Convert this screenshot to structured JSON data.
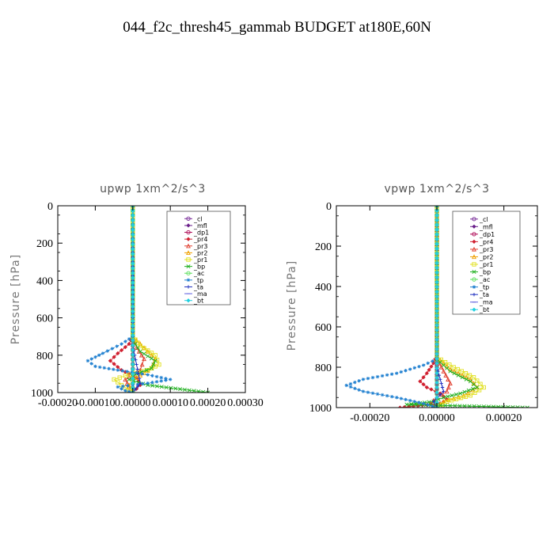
{
  "figure": {
    "title": "044_f2c_thresh45_gammab  BUDGET at180E,60N"
  },
  "legend_labels": [
    "_cl",
    "_mfl",
    "_dp1",
    "_pr4",
    "_pr3",
    "_pr2",
    "_pr1",
    "_bp",
    "_ac",
    "_tp",
    "_ta",
    "_ma",
    "_bt"
  ],
  "series_colors": [
    "#7a2f9a",
    "#6a1f8a",
    "#b0105a",
    "#d02030",
    "#e04030",
    "#f0a000",
    "#e0e020",
    "#20b020",
    "#60e060",
    "#2080d0",
    "#2030c0",
    "#6060e0",
    "#20d0e0"
  ],
  "chart_data": [
    {
      "type": "line",
      "title": "upwp   1xm^2/s^3",
      "ylabel": "Pressure [hPa]",
      "xlim": [
        -0.0002,
        0.0003
      ],
      "ylim": [
        1000,
        0
      ],
      "xticks": [
        -0.0002,
        -0.0001,
        0.0,
        0.0001,
        0.0002,
        0.0003
      ],
      "xtick_labels": [
        "-0.00020",
        "-0.00010",
        "0.00000",
        "0.00010",
        "0.00020",
        "0.00030"
      ],
      "yticks": [
        0,
        200,
        400,
        600,
        800,
        1000
      ],
      "ytick_labels": [
        "0",
        "200",
        "400",
        "600",
        "800",
        "1000"
      ],
      "legend_position": "top-right",
      "series": [
        {
          "name": "_cl",
          "x": [
            0,
            0
          ],
          "y": [
            0,
            1000
          ]
        },
        {
          "name": "_mfl",
          "x": [
            0,
            0
          ],
          "y": [
            0,
            1000
          ]
        },
        {
          "name": "_dp1",
          "x": [
            0,
            0,
            0,
            0,
            0,
            0,
            0
          ],
          "y": [
            0,
            200,
            400,
            600,
            800,
            950,
            1000
          ]
        },
        {
          "name": "_pr4",
          "x": [
            0,
            0,
            -1e-05,
            -4e-05,
            -6e-05,
            -3e-05,
            1e-05,
            2e-05,
            0.0
          ],
          "y": [
            0,
            700,
            740,
            790,
            830,
            880,
            920,
            960,
            1000
          ]
        },
        {
          "name": "_pr3",
          "x": [
            0,
            0,
            1e-05,
            3e-05,
            2e-05,
            -2e-05,
            -1e-05,
            0.0
          ],
          "y": [
            0,
            700,
            760,
            820,
            880,
            930,
            970,
            1000
          ]
        },
        {
          "name": "_pr2",
          "x": [
            0,
            0,
            3e-05,
            6e-05,
            5e-05,
            1e-05,
            -1e-05,
            0.0
          ],
          "y": [
            0,
            700,
            760,
            820,
            870,
            920,
            960,
            1000
          ]
        },
        {
          "name": "_pr1",
          "x": [
            0,
            0,
            2e-05,
            6e-05,
            7e-05,
            4e-05,
            -2e-05,
            -5e-05,
            -3e-05,
            0.0
          ],
          "y": [
            0,
            700,
            750,
            800,
            850,
            880,
            910,
            930,
            960,
            1000
          ]
        },
        {
          "name": "_bp",
          "x": [
            0,
            0,
            2e-05,
            6e-05,
            5e-05,
            1e-05,
            -1e-05,
            4e-05,
            0.0002
          ],
          "y": [
            0,
            720,
            780,
            830,
            870,
            900,
            930,
            960,
            1000
          ]
        },
        {
          "name": "_ac",
          "x": [
            0,
            0,
            0
          ],
          "y": [
            0,
            800,
            1000
          ]
        },
        {
          "name": "_tp",
          "x": [
            0,
            0,
            -3e-05,
            -8e-05,
            -0.00012,
            -0.0001,
            -4e-05,
            1e-05,
            4e-05,
            0.0001,
            4e-05,
            -4e-05,
            -2e-05,
            0.0
          ],
          "y": [
            0,
            700,
            740,
            790,
            830,
            860,
            880,
            895,
            905,
            930,
            950,
            970,
            990,
            1000
          ]
        },
        {
          "name": "_ta",
          "x": [
            0,
            0,
            1e-05,
            2e-05,
            0.0
          ],
          "y": [
            0,
            750,
            850,
            950,
            1000
          ]
        },
        {
          "name": "_ma",
          "x": [
            0,
            0,
            0
          ],
          "y": [
            0,
            900,
            1000
          ]
        },
        {
          "name": "_bt",
          "x": [
            0,
            0,
            0
          ],
          "y": [
            0,
            900,
            1000
          ]
        }
      ]
    },
    {
      "type": "line",
      "title": "vpwp   1xm^2/s^3",
      "ylabel": "Pressure [hPa]",
      "xlim": [
        -0.0003,
        0.0003
      ],
      "ylim": [
        1000,
        0
      ],
      "xticks": [
        -0.0002,
        0.0,
        0.0002
      ],
      "xtick_labels": [
        "-0.00020",
        "0.00000",
        "0.00020"
      ],
      "yticks": [
        0,
        200,
        400,
        600,
        800,
        1000
      ],
      "ytick_labels": [
        "0",
        "200",
        "400",
        "600",
        "800",
        "1000"
      ],
      "legend_position": "top-right",
      "series": [
        {
          "name": "_cl",
          "x": [
            0,
            0
          ],
          "y": [
            0,
            1000
          ]
        },
        {
          "name": "_mfl",
          "x": [
            0,
            0
          ],
          "y": [
            0,
            1000
          ]
        },
        {
          "name": "_dp1",
          "x": [
            0,
            0,
            0,
            0,
            0,
            0
          ],
          "y": [
            0,
            200,
            400,
            600,
            800,
            1000
          ]
        },
        {
          "name": "_pr4",
          "x": [
            0,
            0,
            -1e-05,
            -3e-05,
            -5e-05,
            -3e-05,
            1e-05,
            3e-05,
            1e-05,
            -0.00011
          ],
          "y": [
            0,
            740,
            780,
            830,
            870,
            900,
            930,
            960,
            980,
            1000
          ]
        },
        {
          "name": "_pr3",
          "x": [
            0,
            0,
            2e-05,
            4e-05,
            3e-05,
            0.0,
            -2e-05,
            0.0
          ],
          "y": [
            0,
            760,
            820,
            880,
            920,
            950,
            980,
            1000
          ]
        },
        {
          "name": "_pr2",
          "x": [
            0,
            0,
            4e-05,
            0.0001,
            0.00012,
            8e-05,
            2e-05,
            0.0
          ],
          "y": [
            0,
            750,
            810,
            860,
            900,
            940,
            970,
            1000
          ]
        },
        {
          "name": "_pr1",
          "x": [
            0,
            0,
            5e-05,
            0.00011,
            0.00014,
            0.0001,
            3e-05,
            0.0
          ],
          "y": [
            0,
            750,
            800,
            850,
            900,
            940,
            970,
            1000
          ]
        },
        {
          "name": "_bp",
          "x": [
            0,
            0,
            4e-05,
            0.0001,
            0.00012,
            7e-05,
            2e-05,
            -1e-05,
            -9e-05,
            0.00027
          ],
          "y": [
            0,
            760,
            820,
            870,
            900,
            930,
            950,
            970,
            985,
            1000
          ]
        },
        {
          "name": "_ac",
          "x": [
            0,
            0,
            0
          ],
          "y": [
            0,
            800,
            1000
          ]
        },
        {
          "name": "_tp",
          "x": [
            0,
            0,
            -4e-05,
            -0.00012,
            -0.00022,
            -0.00027,
            -0.00022,
            -0.00012,
            -4e-05,
            0.0
          ],
          "y": [
            0,
            760,
            790,
            830,
            860,
            890,
            920,
            950,
            980,
            1000
          ]
        },
        {
          "name": "_ta",
          "x": [
            0,
            0,
            1e-05,
            2e-05,
            -1e-05,
            0.0
          ],
          "y": [
            0,
            800,
            860,
            920,
            970,
            1000
          ]
        },
        {
          "name": "_ma",
          "x": [
            0,
            0,
            0
          ],
          "y": [
            0,
            900,
            1000
          ]
        },
        {
          "name": "_bt",
          "x": [
            0,
            0,
            0
          ],
          "y": [
            0,
            900,
            1000
          ]
        }
      ]
    }
  ]
}
